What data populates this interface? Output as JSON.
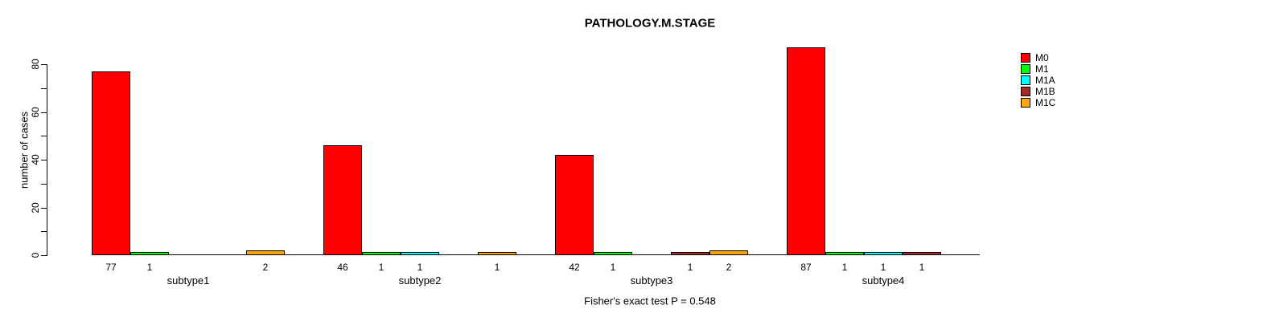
{
  "chart": {
    "title": "PATHOLOGY.M.STAGE",
    "ylabel": "number of cases",
    "caption": "Fisher's exact test P = 0.548"
  },
  "chart_data": {
    "type": "bar",
    "grouped": true,
    "title": "PATHOLOGY.M.STAGE",
    "xlabel": "",
    "ylabel": "number of cases",
    "caption": "Fisher's exact test P = 0.548",
    "categories": [
      "subtype1",
      "subtype2",
      "subtype3",
      "subtype4"
    ],
    "series": [
      {
        "name": "M0",
        "color": "#FF0000",
        "values": [
          77,
          46,
          42,
          87
        ]
      },
      {
        "name": "M1",
        "color": "#00FF00",
        "values": [
          1,
          1,
          1,
          1
        ]
      },
      {
        "name": "M1A",
        "color": "#00FFFF",
        "values": [
          0,
          1,
          0,
          1
        ]
      },
      {
        "name": "M1B",
        "color": "#A52A2A",
        "values": [
          0,
          0,
          1,
          1
        ]
      },
      {
        "name": "M1C",
        "color": "#FFA500",
        "values": [
          2,
          1,
          2,
          0
        ]
      }
    ],
    "bar_value_labels": {
      "subtype1": [
        77,
        1,
        null,
        null,
        2
      ],
      "subtype2": [
        46,
        1,
        1,
        null,
        1
      ],
      "subtype3": [
        42,
        1,
        null,
        1,
        2
      ],
      "subtype4": [
        87,
        1,
        1,
        1,
        null
      ]
    },
    "ylim": [
      0,
      87
    ],
    "yticks": [
      0,
      20,
      40,
      60,
      80
    ],
    "minor_tick_step": 10,
    "grid": false,
    "legend_position": "right",
    "legend_entries": [
      "M0",
      "M1",
      "M1A",
      "M1B",
      "M1C"
    ],
    "axis_color": "#000000",
    "background_color": "#FFFFFF"
  }
}
